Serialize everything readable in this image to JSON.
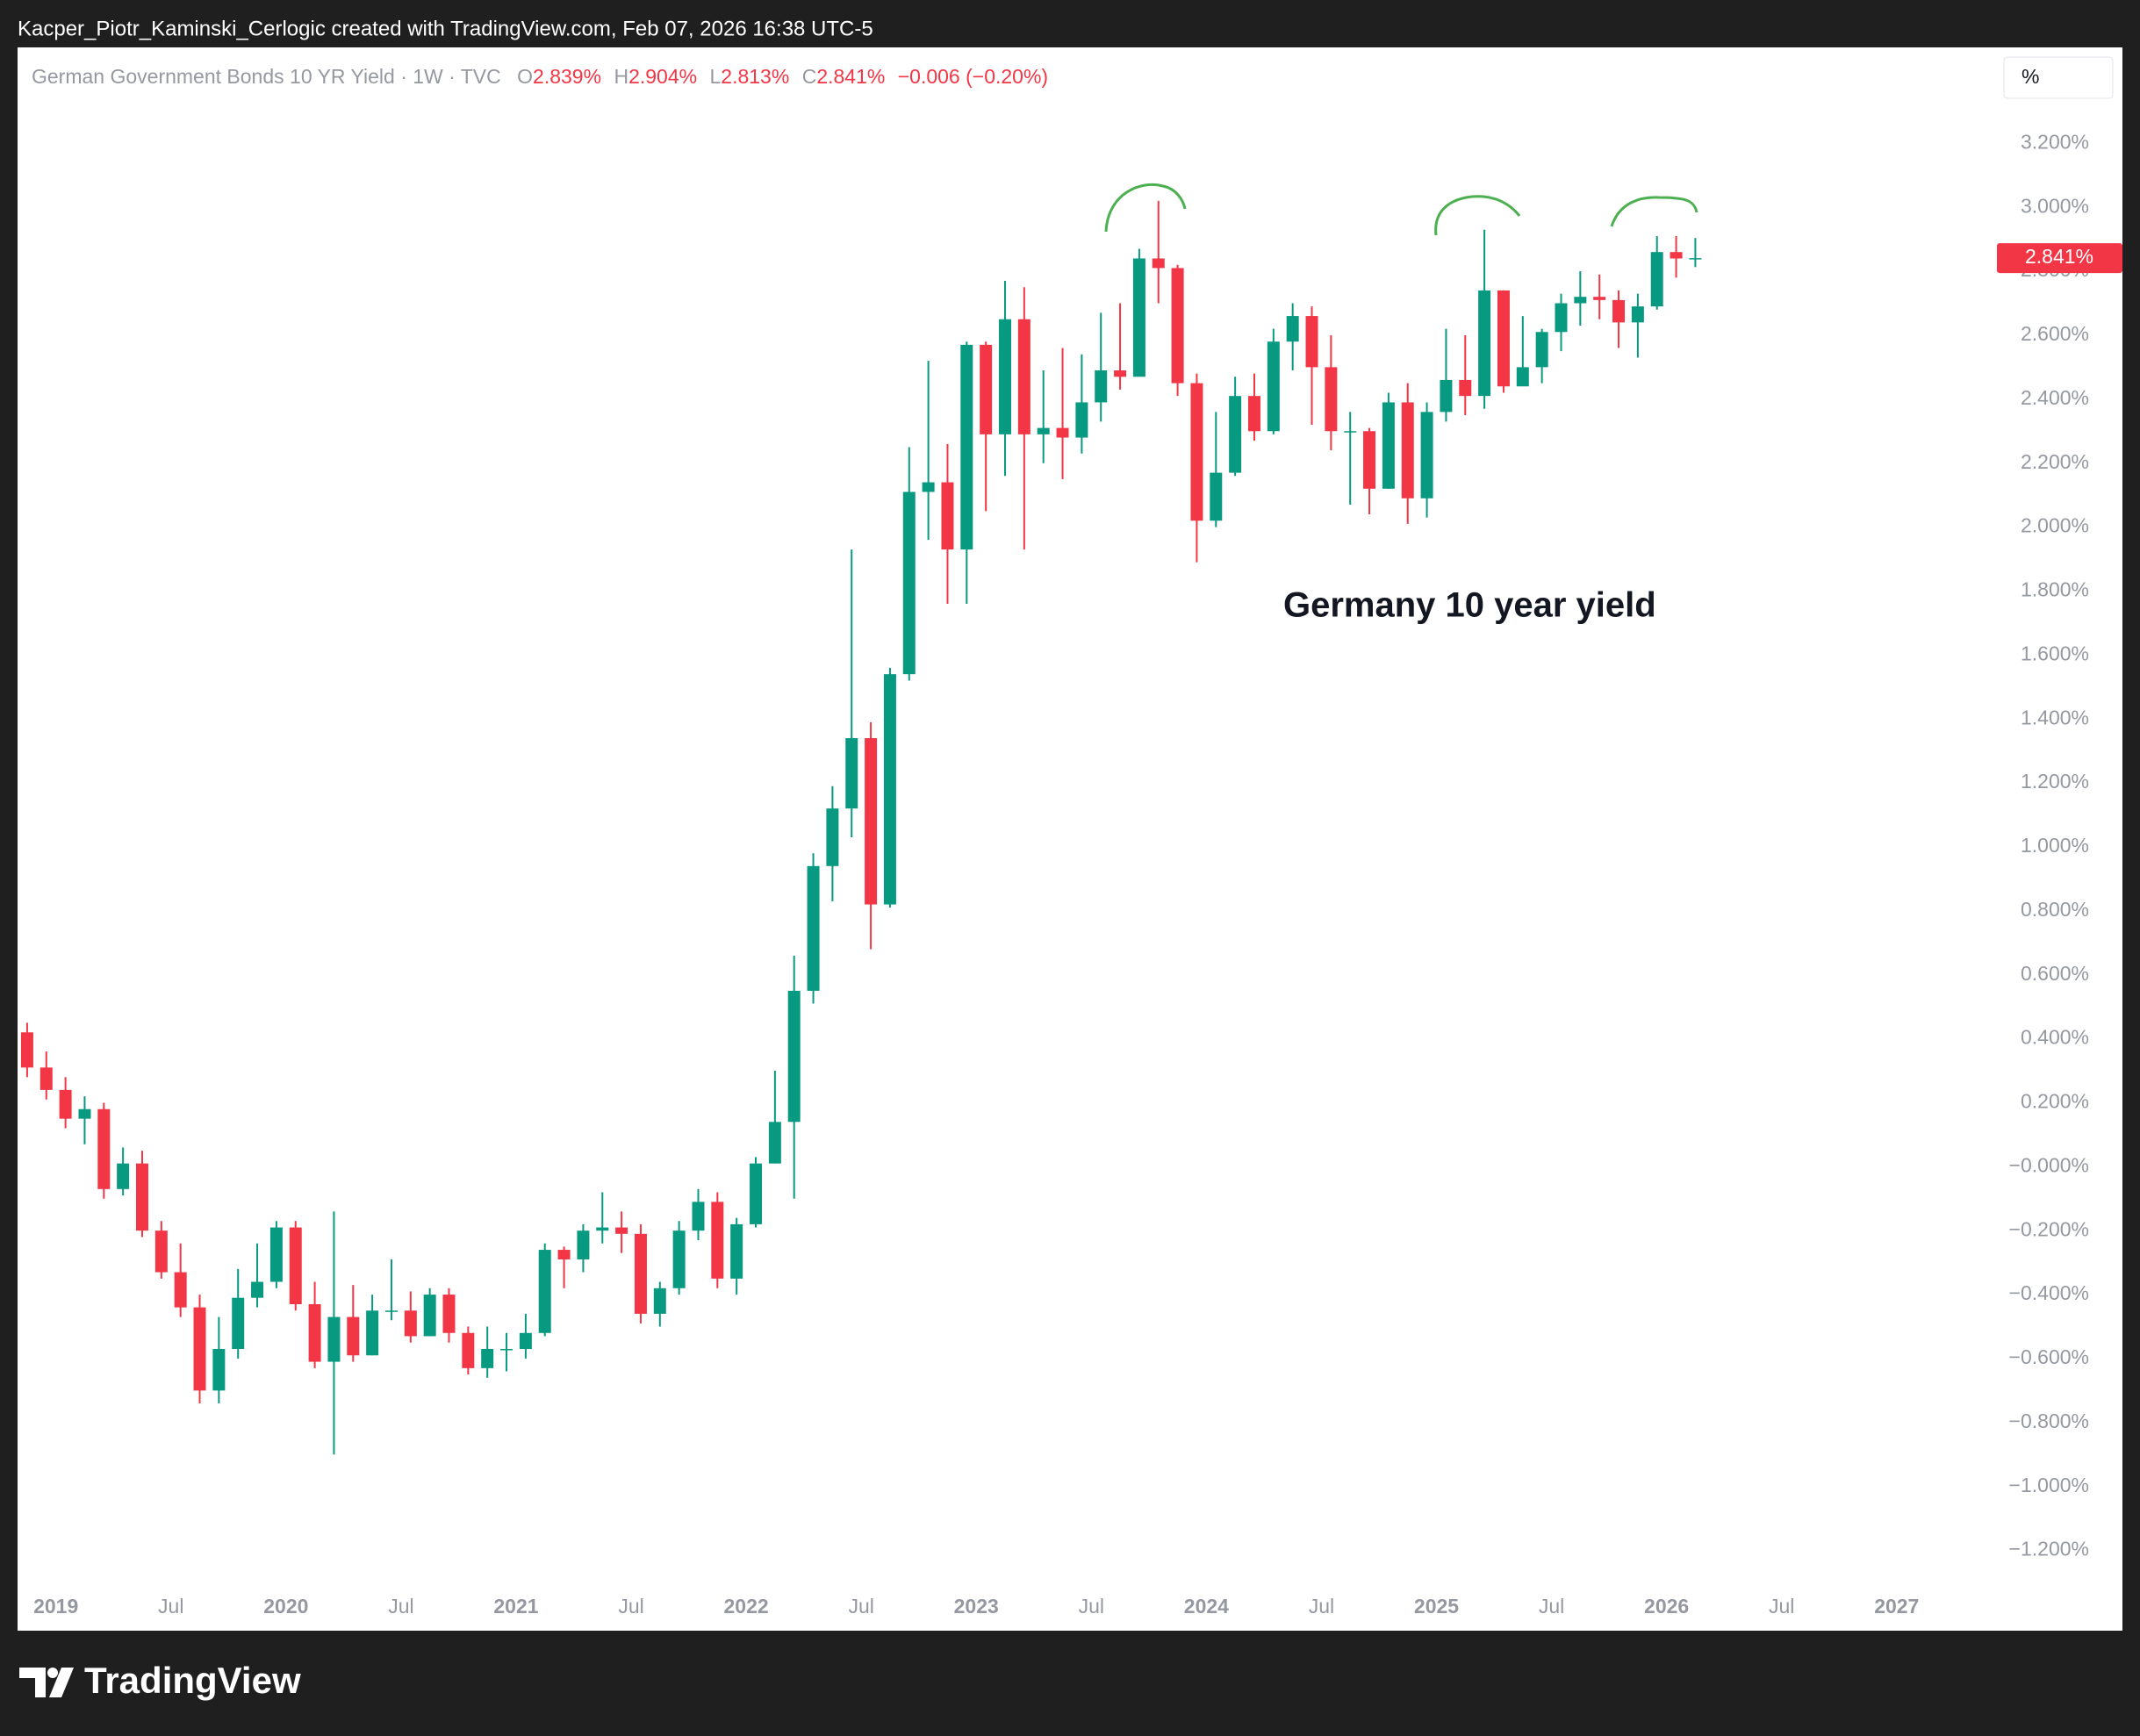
{
  "top_bar": "Kacper_Piotr_Kaminski_Cerlogic created with TradingView.com, Feb 07, 2026 16:38 UTC-5",
  "brand": "TradingView",
  "chart_data": {
    "type": "candlestick",
    "legend": {
      "symbol": "German Government Bonds 10 YR Yield · 1W · TVC",
      "fields": [
        {
          "key": "O",
          "value": "2.839%"
        },
        {
          "key": "H",
          "value": "2.904%"
        },
        {
          "key": "L",
          "value": "2.813%"
        },
        {
          "key": "C",
          "value": "2.841%"
        }
      ],
      "change": "−0.006 (−0.20%)"
    },
    "unit_button": "%",
    "annotation": "Germany 10 year yield",
    "last_price": {
      "value": 2.841,
      "label": "2.841%"
    },
    "colors": {
      "up": "#089981",
      "down": "#f23645"
    },
    "grid": false,
    "x": [
      "2018-11",
      "2018-12",
      "2019-01",
      "2019-02",
      "2019-03",
      "2019-04",
      "2019-05",
      "2019-06",
      "2019-07",
      "2019-08",
      "2019-09",
      "2019-10",
      "2019-11",
      "2019-12",
      "2020-01",
      "2020-02",
      "2020-03",
      "2020-04",
      "2020-05",
      "2020-06",
      "2020-07",
      "2020-08",
      "2020-09",
      "2020-10",
      "2020-11",
      "2020-12",
      "2021-01",
      "2021-02",
      "2021-03",
      "2021-04",
      "2021-05",
      "2021-06",
      "2021-07",
      "2021-08",
      "2021-09",
      "2021-10",
      "2021-11",
      "2021-12",
      "2022-01",
      "2022-02",
      "2022-03",
      "2022-04",
      "2022-05",
      "2022-06",
      "2022-07",
      "2022-08",
      "2022-09",
      "2022-10",
      "2022-11",
      "2022-12",
      "2023-01",
      "2023-02",
      "2023-03",
      "2023-04",
      "2023-05",
      "2023-06",
      "2023-07",
      "2023-08",
      "2023-09",
      "2023-10",
      "2023-11",
      "2023-12",
      "2024-01",
      "2024-02",
      "2024-03",
      "2024-04",
      "2024-05",
      "2024-06",
      "2024-07",
      "2024-08",
      "2024-09",
      "2024-10",
      "2024-11",
      "2024-12",
      "2025-01",
      "2025-02",
      "2025-03",
      "2025-04",
      "2025-05",
      "2025-06",
      "2025-07",
      "2025-08",
      "2025-09",
      "2025-10",
      "2025-11",
      "2025-12",
      "2026-01",
      "2026-02"
    ],
    "open": [
      0.42,
      0.31,
      0.24,
      0.15,
      0.18,
      -0.07,
      0.01,
      -0.2,
      -0.33,
      -0.44,
      -0.7,
      -0.57,
      -0.41,
      -0.36,
      -0.19,
      -0.43,
      -0.61,
      -0.47,
      -0.59,
      -0.45,
      -0.45,
      -0.53,
      -0.4,
      -0.52,
      -0.63,
      -0.57,
      -0.57,
      -0.52,
      -0.26,
      -0.29,
      -0.2,
      -0.19,
      -0.21,
      -0.46,
      -0.38,
      -0.2,
      -0.11,
      -0.35,
      -0.18,
      0.01,
      0.14,
      0.55,
      0.94,
      1.12,
      1.34,
      0.82,
      1.54,
      2.11,
      2.14,
      1.93,
      2.57,
      2.29,
      2.65,
      2.29,
      2.31,
      2.28,
      2.39,
      2.49,
      2.47,
      2.84,
      2.81,
      2.45,
      2.02,
      2.17,
      2.41,
      2.3,
      2.58,
      2.66,
      2.5,
      2.3,
      2.3,
      2.12,
      2.39,
      2.09,
      2.36,
      2.46,
      2.41,
      2.74,
      2.44,
      2.5,
      2.61,
      2.7,
      2.72,
      2.71,
      2.64,
      2.69,
      2.86,
      2.839
    ],
    "high": [
      0.45,
      0.36,
      0.28,
      0.22,
      0.2,
      0.06,
      0.05,
      -0.17,
      -0.24,
      -0.4,
      -0.47,
      -0.32,
      -0.24,
      -0.17,
      -0.17,
      -0.36,
      -0.14,
      -0.37,
      -0.4,
      -0.29,
      -0.39,
      -0.38,
      -0.38,
      -0.5,
      -0.5,
      -0.52,
      -0.46,
      -0.24,
      -0.25,
      -0.18,
      -0.08,
      -0.14,
      -0.18,
      -0.36,
      -0.17,
      -0.07,
      -0.08,
      -0.16,
      0.03,
      0.3,
      0.66,
      0.98,
      1.19,
      1.93,
      1.39,
      1.56,
      2.25,
      2.52,
      2.26,
      2.58,
      2.58,
      2.77,
      2.75,
      2.49,
      2.56,
      2.54,
      2.67,
      2.7,
      2.87,
      3.02,
      2.82,
      2.48,
      2.36,
      2.47,
      2.48,
      2.62,
      2.7,
      2.69,
      2.6,
      2.36,
      2.31,
      2.42,
      2.45,
      2.39,
      2.62,
      2.6,
      2.93,
      2.74,
      2.66,
      2.62,
      2.73,
      2.8,
      2.79,
      2.74,
      2.73,
      2.91,
      2.91,
      2.904
    ],
    "low": [
      0.28,
      0.21,
      0.12,
      0.07,
      -0.1,
      -0.09,
      -0.22,
      -0.35,
      -0.47,
      -0.74,
      -0.74,
      -0.6,
      -0.44,
      -0.38,
      -0.45,
      -0.63,
      -0.9,
      -0.61,
      -0.59,
      -0.48,
      -0.55,
      -0.53,
      -0.55,
      -0.65,
      -0.66,
      -0.64,
      -0.6,
      -0.53,
      -0.38,
      -0.33,
      -0.24,
      -0.27,
      -0.49,
      -0.5,
      -0.4,
      -0.23,
      -0.38,
      -0.4,
      -0.19,
      0.01,
      -0.1,
      0.51,
      0.83,
      1.03,
      0.68,
      0.81,
      1.52,
      1.96,
      1.76,
      1.76,
      2.05,
      2.16,
      1.93,
      2.2,
      2.15,
      2.23,
      2.33,
      2.43,
      2.48,
      2.7,
      2.41,
      1.89,
      2.0,
      2.16,
      2.27,
      2.29,
      2.49,
      2.32,
      2.24,
      2.07,
      2.04,
      2.12,
      2.01,
      2.03,
      2.33,
      2.35,
      2.37,
      2.42,
      2.47,
      2.45,
      2.55,
      2.63,
      2.65,
      2.56,
      2.53,
      2.68,
      2.78,
      2.813
    ],
    "close": [
      0.31,
      0.24,
      0.15,
      0.18,
      -0.07,
      0.01,
      -0.2,
      -0.33,
      -0.44,
      -0.7,
      -0.57,
      -0.41,
      -0.36,
      -0.19,
      -0.43,
      -0.61,
      -0.47,
      -0.59,
      -0.45,
      -0.45,
      -0.53,
      -0.4,
      -0.52,
      -0.63,
      -0.57,
      -0.57,
      -0.52,
      -0.26,
      -0.29,
      -0.2,
      -0.19,
      -0.21,
      -0.46,
      -0.38,
      -0.2,
      -0.11,
      -0.35,
      -0.18,
      0.01,
      0.14,
      0.55,
      0.94,
      1.12,
      1.34,
      0.82,
      1.54,
      2.11,
      2.14,
      1.93,
      2.57,
      2.29,
      2.65,
      2.29,
      2.31,
      2.28,
      2.39,
      2.49,
      2.47,
      2.84,
      2.81,
      2.45,
      2.02,
      2.17,
      2.41,
      2.3,
      2.58,
      2.66,
      2.5,
      2.3,
      2.3,
      2.12,
      2.39,
      2.09,
      2.36,
      2.46,
      2.41,
      2.74,
      2.44,
      2.5,
      2.61,
      2.7,
      2.72,
      2.71,
      2.64,
      2.69,
      2.86,
      2.84,
      2.841
    ],
    "xlim": [
      "2018-11",
      "2027-06"
    ],
    "xticks": [
      {
        "value": "2019-01",
        "label": "2019"
      },
      {
        "value": "2019-07",
        "label": "Jul"
      },
      {
        "value": "2020-01",
        "label": "2020"
      },
      {
        "value": "2020-07",
        "label": "Jul"
      },
      {
        "value": "2021-01",
        "label": "2021"
      },
      {
        "value": "2021-07",
        "label": "Jul"
      },
      {
        "value": "2022-01",
        "label": "2022"
      },
      {
        "value": "2022-07",
        "label": "Jul"
      },
      {
        "value": "2023-01",
        "label": "2023"
      },
      {
        "value": "2023-07",
        "label": "Jul"
      },
      {
        "value": "2024-01",
        "label": "2024"
      },
      {
        "value": "2024-07",
        "label": "Jul"
      },
      {
        "value": "2025-01",
        "label": "2025"
      },
      {
        "value": "2025-07",
        "label": "Jul"
      },
      {
        "value": "2026-01",
        "label": "2026"
      },
      {
        "value": "2026-07",
        "label": "Jul"
      },
      {
        "value": "2027-01",
        "label": "2027"
      }
    ],
    "ylim": [
      -1.3,
      3.5
    ],
    "yticks": [
      {
        "value": 3.2,
        "label": "3.200%"
      },
      {
        "value": 3.0,
        "label": "3.000%"
      },
      {
        "value": 2.8,
        "label": "2.800%"
      },
      {
        "value": 2.6,
        "label": "2.600%"
      },
      {
        "value": 2.4,
        "label": "2.400%"
      },
      {
        "value": 2.2,
        "label": "2.200%"
      },
      {
        "value": 2.0,
        "label": "2.000%"
      },
      {
        "value": 1.8,
        "label": "1.800%"
      },
      {
        "value": 1.6,
        "label": "1.600%"
      },
      {
        "value": 1.4,
        "label": "1.400%"
      },
      {
        "value": 1.2,
        "label": "1.200%"
      },
      {
        "value": 1.0,
        "label": "1.000%"
      },
      {
        "value": 0.8,
        "label": "0.800%"
      },
      {
        "value": 0.6,
        "label": "0.600%"
      },
      {
        "value": 0.4,
        "label": "0.400%"
      },
      {
        "value": 0.2,
        "label": "0.200%"
      },
      {
        "value": 0,
        "label": "−0.000%"
      },
      {
        "value": -0.2,
        "label": "−0.200%"
      },
      {
        "value": -0.4,
        "label": "−0.400%"
      },
      {
        "value": -0.6,
        "label": "−0.600%"
      },
      {
        "value": -0.8,
        "label": "−0.800%"
      },
      {
        "value": -1.0,
        "label": "−1.000%"
      },
      {
        "value": -1.2,
        "label": "−1.200%"
      }
    ]
  }
}
